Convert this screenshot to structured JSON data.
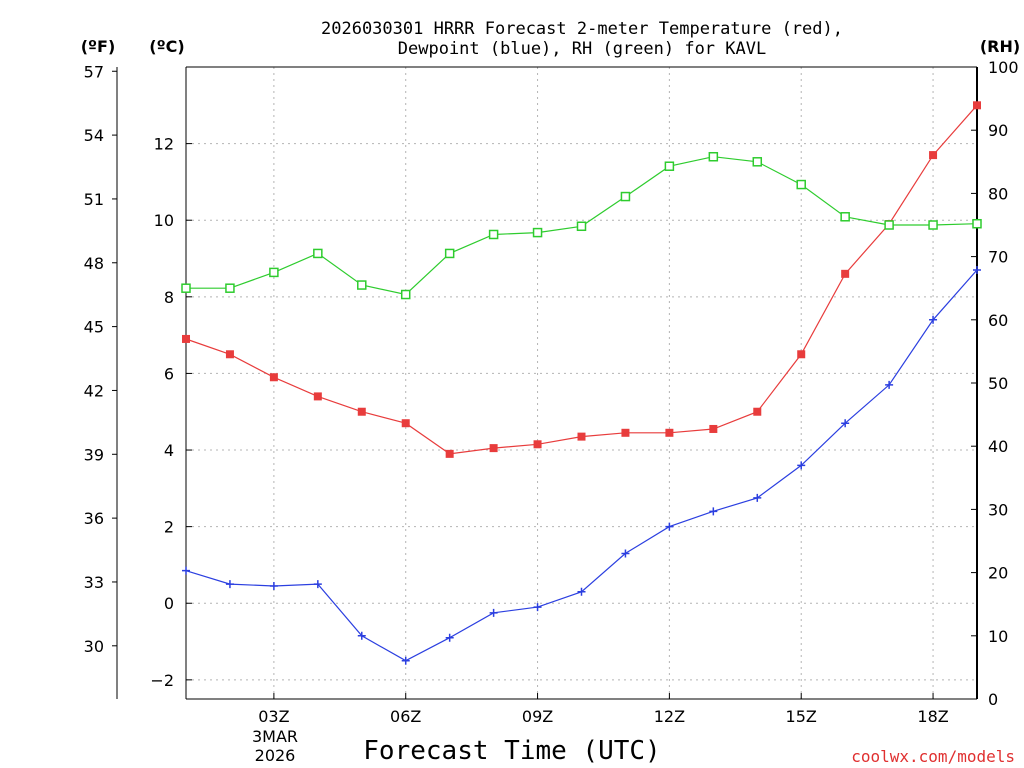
{
  "chart_data": {
    "type": "line",
    "title_line1": "2026030301 HRRR Forecast 2-meter Temperature (red),",
    "title_line2": "Dewpoint (blue), RH (green) for KAVL",
    "xlabel": "Forecast Time (UTC)",
    "date_line1": "3MAR",
    "date_line2": "2026",
    "credit": "coolwx.com/models",
    "units": {
      "fahrenheit": "(ºF)",
      "celsius": "(ºC)",
      "rh": "(RH)"
    },
    "x_range": [
      1,
      19
    ],
    "x_ticks": [
      {
        "hour": 3,
        "label": "03Z"
      },
      {
        "hour": 6,
        "label": "06Z"
      },
      {
        "hour": 9,
        "label": "09Z"
      },
      {
        "hour": 12,
        "label": "12Z"
      },
      {
        "hour": 15,
        "label": "15Z"
      },
      {
        "hour": 18,
        "label": "18Z"
      }
    ],
    "celsius_range": [
      -2.5,
      14
    ],
    "celsius_ticks": [
      -2,
      0,
      2,
      4,
      6,
      8,
      10,
      12
    ],
    "fahrenheit_ticks": [
      "30",
      "33",
      "36",
      "39",
      "42",
      "45",
      "48",
      "51",
      "54",
      "57"
    ],
    "rh_range": [
      0,
      100
    ],
    "rh_ticks": [
      0,
      10,
      20,
      30,
      40,
      50,
      60,
      70,
      80,
      90,
      100
    ],
    "hours": [
      1,
      2,
      3,
      4,
      5,
      6,
      7,
      8,
      9,
      10,
      11,
      12,
      13,
      14,
      15,
      16,
      17,
      18,
      19
    ],
    "series": [
      {
        "name": "Temperature",
        "axis": "celsius",
        "color": "#e83c3c",
        "marker": "filled-square",
        "values": [
          6.9,
          6.5,
          5.9,
          5.4,
          5.0,
          4.7,
          3.9,
          4.05,
          4.15,
          4.35,
          4.45,
          4.45,
          4.55,
          5.0,
          6.5,
          8.6,
          9.9,
          11.7,
          13.0
        ]
      },
      {
        "name": "Dewpoint",
        "axis": "celsius",
        "color": "#2b3fe0",
        "marker": "plus",
        "values": [
          0.85,
          0.5,
          0.45,
          0.5,
          -0.85,
          -1.5,
          -0.9,
          -0.25,
          -0.1,
          0.3,
          1.3,
          2.0,
          2.4,
          2.75,
          3.6,
          4.7,
          5.7,
          7.4,
          8.7
        ]
      },
      {
        "name": "RH",
        "axis": "rh",
        "color": "#2ecc2e",
        "marker": "open-square",
        "values": [
          65,
          65,
          67.5,
          70.5,
          65.5,
          64,
          70.5,
          73.5,
          73.8,
          74.8,
          79.5,
          84.3,
          85.8,
          85,
          81.4,
          76.3,
          75,
          75,
          75.2
        ]
      }
    ]
  }
}
